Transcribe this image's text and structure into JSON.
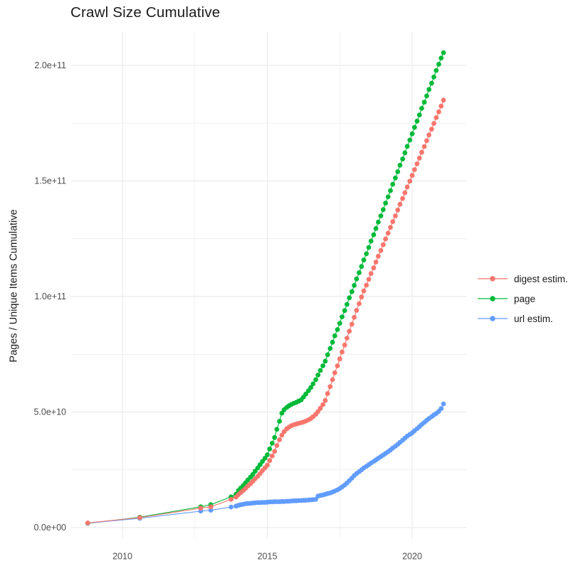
{
  "chart_data": {
    "type": "line",
    "title": "Crawl Size Cumulative",
    "xlabel": "",
    "ylabel": "Pages / Unique Items Cumulative",
    "value_unit": "point values stored in billions (1e9); y axis shown in scientific notation",
    "grid": true,
    "legend_position": "right",
    "xlim": [
      2008.2,
      2021.9
    ],
    "ylim_e9": [
      -4.6,
      214.5
    ],
    "x_ticks": [
      {
        "label": "2010",
        "value": 2010
      },
      {
        "label": "2015",
        "value": 2015
      },
      {
        "label": "2020",
        "value": 2020
      }
    ],
    "x_minor": [
      2012.5,
      2017.5
    ],
    "y_ticks": [
      {
        "label": "0.0e+00",
        "value": 0
      },
      {
        "label": "5.0e+10",
        "value": 50
      },
      {
        "label": "1.0e+11",
        "value": 100
      },
      {
        "label": "1.5e+11",
        "value": 150
      },
      {
        "label": "2.0e+11",
        "value": 200
      }
    ],
    "y_minor": [
      25,
      75,
      125,
      175
    ],
    "colors": {
      "digest_estim": "#F8766D",
      "page": "#00BA38",
      "url_estim": "#619CFF",
      "gridline": "#EBEBEB",
      "tick_text": "#4D4D4D",
      "text": "#1A1A1A",
      "background": "#FFFFFF"
    },
    "draw_order": [
      1,
      2,
      0
    ],
    "series": [
      {
        "name": "digest estim.",
        "color": "#F8766D",
        "points": [
          [
            2008.8,
            2.0
          ],
          [
            2010.6,
            4.3
          ],
          [
            2012.7,
            8.4
          ],
          [
            2013.05,
            9.0
          ],
          [
            2013.75,
            12.2
          ],
          [
            2013.92,
            13.2
          ],
          [
            2014,
            14.2
          ],
          [
            2014.08,
            15.1
          ],
          [
            2014.17,
            16
          ],
          [
            2014.25,
            17
          ],
          [
            2014.33,
            18
          ],
          [
            2014.42,
            19
          ],
          [
            2014.5,
            20
          ],
          [
            2014.58,
            21.1
          ],
          [
            2014.67,
            22.2
          ],
          [
            2014.75,
            23.4
          ],
          [
            2014.83,
            24.6
          ],
          [
            2014.92,
            25.8
          ],
          [
            2015,
            27
          ],
          [
            2015.08,
            29
          ],
          [
            2015.17,
            31
          ],
          [
            2015.25,
            33
          ],
          [
            2015.33,
            35.5
          ],
          [
            2015.42,
            38
          ],
          [
            2015.5,
            40
          ],
          [
            2015.58,
            41.5
          ],
          [
            2015.67,
            42.7
          ],
          [
            2015.75,
            43.5
          ],
          [
            2015.83,
            44.1
          ],
          [
            2015.92,
            44.5
          ],
          [
            2016,
            44.8
          ],
          [
            2016.08,
            45.1
          ],
          [
            2016.17,
            45.4
          ],
          [
            2016.25,
            45.7
          ],
          [
            2016.33,
            46.1
          ],
          [
            2016.42,
            46.6
          ],
          [
            2016.5,
            47.2
          ],
          [
            2016.58,
            48
          ],
          [
            2016.67,
            49
          ],
          [
            2016.75,
            50.2
          ],
          [
            2016.83,
            51.6
          ],
          [
            2016.92,
            53.2
          ],
          [
            2017,
            55
          ],
          [
            2017.08,
            58
          ],
          [
            2017.17,
            61
          ],
          [
            2017.25,
            64
          ],
          [
            2017.33,
            67
          ],
          [
            2017.42,
            70
          ],
          [
            2017.5,
            73
          ],
          [
            2017.58,
            76
          ],
          [
            2017.67,
            79
          ],
          [
            2017.75,
            82
          ],
          [
            2017.83,
            85
          ],
          [
            2017.92,
            88
          ],
          [
            2018,
            91
          ],
          [
            2018.08,
            94
          ],
          [
            2018.17,
            96.9
          ],
          [
            2018.25,
            99.8
          ],
          [
            2018.33,
            102.4
          ],
          [
            2018.42,
            104.9
          ],
          [
            2018.5,
            107.4
          ],
          [
            2018.58,
            109.9
          ],
          [
            2018.67,
            112.4
          ],
          [
            2018.75,
            114.9
          ],
          [
            2018.83,
            117.4
          ],
          [
            2018.92,
            119.9
          ],
          [
            2019,
            122.4
          ],
          [
            2019.08,
            124.9
          ],
          [
            2019.17,
            127.4
          ],
          [
            2019.25,
            129.9
          ],
          [
            2019.33,
            132.4
          ],
          [
            2019.42,
            134.9
          ],
          [
            2019.5,
            137.4
          ],
          [
            2019.58,
            139.9
          ],
          [
            2019.67,
            142.4
          ],
          [
            2019.75,
            144.9
          ],
          [
            2019.83,
            147.4
          ],
          [
            2019.92,
            149.9
          ],
          [
            2020,
            152.4
          ],
          [
            2020.08,
            154.9
          ],
          [
            2020.17,
            157.4
          ],
          [
            2020.25,
            159.9
          ],
          [
            2020.33,
            162.4
          ],
          [
            2020.42,
            164.9
          ],
          [
            2020.5,
            167.4
          ],
          [
            2020.58,
            169.9
          ],
          [
            2020.67,
            172.4
          ],
          [
            2020.75,
            174.9
          ],
          [
            2020.83,
            177.4
          ],
          [
            2020.92,
            179.9
          ],
          [
            2021,
            182.4
          ],
          [
            2021.08,
            185
          ]
        ]
      },
      {
        "name": "page",
        "color": "#00BA38",
        "points": [
          [
            2008.8,
            1.8
          ],
          [
            2010.6,
            4.5
          ],
          [
            2012.7,
            9.0
          ],
          [
            2013.05,
            9.9
          ],
          [
            2013.75,
            13.3
          ],
          [
            2013.92,
            14.4
          ],
          [
            2014,
            16
          ],
          [
            2014.08,
            17.1
          ],
          [
            2014.17,
            18.2
          ],
          [
            2014.25,
            19.4
          ],
          [
            2014.33,
            20.6
          ],
          [
            2014.42,
            21.8
          ],
          [
            2014.5,
            23
          ],
          [
            2014.58,
            24.4
          ],
          [
            2014.67,
            25.8
          ],
          [
            2014.75,
            27.2
          ],
          [
            2014.83,
            28.6
          ],
          [
            2014.92,
            30
          ],
          [
            2015,
            31.5
          ],
          [
            2015.08,
            34
          ],
          [
            2015.17,
            36.5
          ],
          [
            2015.25,
            39
          ],
          [
            2015.33,
            42.5
          ],
          [
            2015.42,
            46
          ],
          [
            2015.5,
            49.5
          ],
          [
            2015.58,
            51
          ],
          [
            2015.67,
            52
          ],
          [
            2015.75,
            52.7
          ],
          [
            2015.83,
            53.3
          ],
          [
            2015.92,
            53.8
          ],
          [
            2016,
            54.2
          ],
          [
            2016.08,
            54.7
          ],
          [
            2016.17,
            55.3
          ],
          [
            2016.25,
            56.5
          ],
          [
            2016.33,
            57.8
          ],
          [
            2016.42,
            59.2
          ],
          [
            2016.5,
            60.6
          ],
          [
            2016.58,
            62.2
          ],
          [
            2016.67,
            64
          ],
          [
            2016.75,
            66
          ],
          [
            2016.83,
            68
          ],
          [
            2016.92,
            70
          ],
          [
            2017,
            72
          ],
          [
            2017.08,
            74.8
          ],
          [
            2017.17,
            77.5
          ],
          [
            2017.25,
            80.2
          ],
          [
            2017.33,
            83
          ],
          [
            2017.42,
            85.7
          ],
          [
            2017.5,
            88.4
          ],
          [
            2017.58,
            91.2
          ],
          [
            2017.67,
            93.9
          ],
          [
            2017.75,
            96.6
          ],
          [
            2017.83,
            99.4
          ],
          [
            2017.92,
            102.1
          ],
          [
            2018,
            104.8
          ],
          [
            2018.08,
            107.6
          ],
          [
            2018.17,
            110.3
          ],
          [
            2018.25,
            113
          ],
          [
            2018.33,
            115.8
          ],
          [
            2018.42,
            118.5
          ],
          [
            2018.5,
            121.2
          ],
          [
            2018.58,
            124
          ],
          [
            2018.67,
            126.7
          ],
          [
            2018.75,
            129.4
          ],
          [
            2018.83,
            132.2
          ],
          [
            2018.92,
            134.9
          ],
          [
            2019,
            137.6
          ],
          [
            2019.08,
            140.4
          ],
          [
            2019.17,
            143.1
          ],
          [
            2019.25,
            145.8
          ],
          [
            2019.33,
            148.6
          ],
          [
            2019.42,
            151.3
          ],
          [
            2019.5,
            154
          ],
          [
            2019.58,
            156.8
          ],
          [
            2019.67,
            159.5
          ],
          [
            2019.75,
            162.2
          ],
          [
            2019.83,
            165
          ],
          [
            2019.92,
            167.7
          ],
          [
            2020,
            170.4
          ],
          [
            2020.08,
            173.2
          ],
          [
            2020.17,
            175.9
          ],
          [
            2020.25,
            178.6
          ],
          [
            2020.33,
            181.4
          ],
          [
            2020.42,
            184.1
          ],
          [
            2020.5,
            186.8
          ],
          [
            2020.58,
            189.6
          ],
          [
            2020.67,
            192.3
          ],
          [
            2020.75,
            195
          ],
          [
            2020.83,
            197.8
          ],
          [
            2020.92,
            200.5
          ],
          [
            2021,
            203.2
          ],
          [
            2021.08,
            205.5
          ]
        ]
      },
      {
        "name": "url estim.",
        "color": "#619CFF",
        "points": [
          [
            2008.8,
            1.9
          ],
          [
            2010.6,
            4.0
          ],
          [
            2012.7,
            7.1
          ],
          [
            2013.05,
            7.5
          ],
          [
            2013.75,
            8.9
          ],
          [
            2013.92,
            9.3
          ],
          [
            2014,
            9.6
          ],
          [
            2014.08,
            9.9
          ],
          [
            2014.17,
            10.1
          ],
          [
            2014.25,
            10.3
          ],
          [
            2014.33,
            10.4
          ],
          [
            2014.42,
            10.5
          ],
          [
            2014.5,
            10.6
          ],
          [
            2014.58,
            10.7
          ],
          [
            2014.67,
            10.8
          ],
          [
            2014.75,
            10.8
          ],
          [
            2014.83,
            10.9
          ],
          [
            2014.92,
            10.9
          ],
          [
            2015,
            11
          ],
          [
            2015.08,
            11.1
          ],
          [
            2015.17,
            11.1
          ],
          [
            2015.25,
            11.2
          ],
          [
            2015.33,
            11.2
          ],
          [
            2015.42,
            11.2
          ],
          [
            2015.5,
            11.3
          ],
          [
            2015.58,
            11.3
          ],
          [
            2015.67,
            11.4
          ],
          [
            2015.75,
            11.4
          ],
          [
            2015.83,
            11.5
          ],
          [
            2015.92,
            11.6
          ],
          [
            2016,
            11.6
          ],
          [
            2016.08,
            11.7
          ],
          [
            2016.17,
            11.7
          ],
          [
            2016.25,
            11.8
          ],
          [
            2016.33,
            11.8
          ],
          [
            2016.42,
            11.9
          ],
          [
            2016.5,
            12
          ],
          [
            2016.58,
            12.1
          ],
          [
            2016.67,
            12.2
          ],
          [
            2016.75,
            13.6
          ],
          [
            2016.83,
            13.9
          ],
          [
            2016.92,
            14.1
          ],
          [
            2017,
            14.4
          ],
          [
            2017.08,
            14.7
          ],
          [
            2017.17,
            15
          ],
          [
            2017.25,
            15.4
          ],
          [
            2017.33,
            15.8
          ],
          [
            2017.42,
            16.3
          ],
          [
            2017.5,
            16.9
          ],
          [
            2017.58,
            17.6
          ],
          [
            2017.67,
            18.4
          ],
          [
            2017.75,
            19.3
          ],
          [
            2017.83,
            20.3
          ],
          [
            2017.92,
            21.4
          ],
          [
            2018,
            22.5
          ],
          [
            2018.08,
            23.4
          ],
          [
            2018.17,
            24.2
          ],
          [
            2018.25,
            25
          ],
          [
            2018.33,
            25.8
          ],
          [
            2018.42,
            26.5
          ],
          [
            2018.5,
            27.2
          ],
          [
            2018.58,
            27.9
          ],
          [
            2018.67,
            28.6
          ],
          [
            2018.75,
            29.3
          ],
          [
            2018.83,
            30
          ],
          [
            2018.92,
            30.7
          ],
          [
            2019,
            31.4
          ],
          [
            2019.08,
            32.1
          ],
          [
            2019.17,
            32.8
          ],
          [
            2019.25,
            33.6
          ],
          [
            2019.33,
            34.4
          ],
          [
            2019.42,
            35.2
          ],
          [
            2019.5,
            36
          ],
          [
            2019.58,
            36.9
          ],
          [
            2019.67,
            37.8
          ],
          [
            2019.75,
            38.7
          ],
          [
            2019.83,
            39.6
          ],
          [
            2019.92,
            40.3
          ],
          [
            2020,
            41
          ],
          [
            2020.08,
            41.9
          ],
          [
            2020.17,
            42.8
          ],
          [
            2020.25,
            43.7
          ],
          [
            2020.33,
            44.6
          ],
          [
            2020.42,
            45.5
          ],
          [
            2020.5,
            46.4
          ],
          [
            2020.58,
            47.2
          ],
          [
            2020.67,
            48
          ],
          [
            2020.75,
            48.7
          ],
          [
            2020.83,
            49.4
          ],
          [
            2020.92,
            50.3
          ],
          [
            2021,
            51.5
          ],
          [
            2021.08,
            53.5
          ]
        ]
      }
    ]
  }
}
